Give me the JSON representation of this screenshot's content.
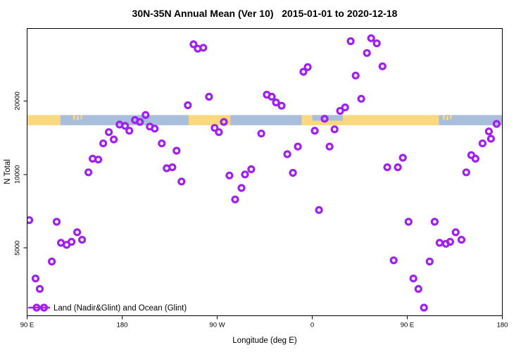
{
  "title": "30N-35N Annual Mean (Ver 10)   2015-01-01 to 2020-12-18",
  "axes": {
    "x_label": "Longitude (deg E)",
    "y_label": "N Total"
  },
  "legend": {
    "label": "Land (Nadir&Glint) and Ocean (Glint)"
  },
  "colors": {
    "point": "#A020F0",
    "land": "#FAD87D",
    "ocean": "#A8BEDA",
    "axis": "#000000",
    "background": "#FFFFFF"
  },
  "chart_data": {
    "type": "scatter",
    "title": "30N-35N Annual Mean (Ver 10)   2015-01-01 to 2020-12-18",
    "xlabel": "Longitude (deg E)",
    "ylabel": "N Total",
    "x_scale": "linear-wrapped-longitude",
    "y_scale": "log",
    "x_domain": [
      90,
      540
    ],
    "y_domain": [
      2640,
      39560
    ],
    "grid": false,
    "legend_position": "bottom-left-inside",
    "x_ticks": [
      {
        "lon": 90,
        "label": "90 E"
      },
      {
        "lon": 180,
        "label": "180"
      },
      {
        "lon": 270,
        "label": "90 W"
      },
      {
        "lon": 360,
        "label": "0"
      },
      {
        "lon": 450,
        "label": "90 E"
      },
      {
        "lon": 540,
        "label": "180"
      }
    ],
    "y_ticks": [
      {
        "value": 5000,
        "label": "5000"
      },
      {
        "value": 10000,
        "label": "10000"
      },
      {
        "value": 20000,
        "label": "20000"
      }
    ],
    "map_strip": {
      "band": {
        "v_top": 17500,
        "v_bottom": 15900
      },
      "segments": [
        {
          "from": 90,
          "to": 121.5,
          "surface": "land"
        },
        {
          "from": 121.5,
          "to": 243,
          "surface": "ocean"
        },
        {
          "from": 243,
          "to": 282.5,
          "surface": "land"
        },
        {
          "from": 282.5,
          "to": 350,
          "surface": "ocean"
        },
        {
          "from": 350,
          "to": 480,
          "surface": "land"
        },
        {
          "from": 480,
          "to": 540,
          "surface": "ocean"
        }
      ],
      "details": [
        {
          "from": 360,
          "to": 389,
          "surface": "ocean",
          "top": 0,
          "bottom": 0.55
        },
        {
          "from": 133.5,
          "to": 135.5,
          "surface": "land",
          "top": 0,
          "bottom": 0.45
        },
        {
          "from": 137,
          "to": 139,
          "surface": "land",
          "top": 0.1,
          "bottom": 0.5
        },
        {
          "from": 140.5,
          "to": 142,
          "surface": "land",
          "top": 0,
          "bottom": 0.4
        },
        {
          "from": 483.5,
          "to": 485.5,
          "surface": "land",
          "top": 0,
          "bottom": 0.45
        },
        {
          "from": 487,
          "to": 489,
          "surface": "land",
          "top": 0.1,
          "bottom": 0.5
        },
        {
          "from": 490.5,
          "to": 492,
          "surface": "land",
          "top": 0,
          "bottom": 0.4
        }
      ]
    },
    "points": [
      [
        247.6,
        34100
      ],
      [
        251.6,
        32700
      ],
      [
        256.9,
        33000
      ],
      [
        262.3,
        20800
      ],
      [
        242.2,
        19200
      ],
      [
        202.2,
        17500
      ],
      [
        317.0,
        21200
      ],
      [
        321.7,
        20800
      ],
      [
        325.7,
        19700
      ],
      [
        331.0,
        19100
      ],
      [
        396.4,
        35100
      ],
      [
        415.8,
        36100
      ],
      [
        421.1,
        34400
      ],
      [
        411.8,
        31400
      ],
      [
        426.5,
        27700
      ],
      [
        401.1,
        25400
      ],
      [
        355.7,
        27500
      ],
      [
        351.7,
        26300
      ],
      [
        406.4,
        20400
      ],
      [
        386.4,
        18200
      ],
      [
        391.1,
        18800
      ],
      [
        192.2,
        16700
      ],
      [
        196.8,
        16400
      ],
      [
        177.5,
        16000
      ],
      [
        182.8,
        15800
      ],
      [
        186.8,
        15100
      ],
      [
        167.4,
        14900
      ],
      [
        162.1,
        13400
      ],
      [
        172.1,
        13900
      ],
      [
        206.2,
        15700
      ],
      [
        210.8,
        15400
      ],
      [
        217.5,
        13400
      ],
      [
        231.5,
        12500
      ],
      [
        152.1,
        11600
      ],
      [
        157.4,
        11500
      ],
      [
        148.1,
        10200
      ],
      [
        222.2,
        10600
      ],
      [
        227.5,
        10700
      ],
      [
        236.2,
        9350
      ],
      [
        267.6,
        15500
      ],
      [
        271.6,
        14900
      ],
      [
        276.3,
        16400
      ],
      [
        281.6,
        9900
      ],
      [
        296.3,
        10000
      ],
      [
        302.3,
        10500
      ],
      [
        311.7,
        14700
      ],
      [
        293.0,
        8800
      ],
      [
        371.7,
        16900
      ],
      [
        362.4,
        15100
      ],
      [
        381.1,
        15300
      ],
      [
        376.4,
        13000
      ],
      [
        346.4,
        13000
      ],
      [
        336.4,
        12100
      ],
      [
        341.7,
        10150
      ],
      [
        431.1,
        10700
      ],
      [
        441.1,
        10700
      ],
      [
        445.8,
        11700
      ],
      [
        510.6,
        12000
      ],
      [
        514.6,
        11600
      ],
      [
        505.9,
        10200
      ],
      [
        521.3,
        13400
      ],
      [
        527.3,
        15000
      ],
      [
        529.3,
        14000
      ],
      [
        534.6,
        16100
      ],
      [
        287.0,
        7900
      ],
      [
        92.0,
        6500
      ],
      [
        118.0,
        6400
      ],
      [
        137.4,
        5800
      ],
      [
        122.1,
        5250
      ],
      [
        127.4,
        5150
      ],
      [
        132.1,
        5300
      ],
      [
        142.1,
        5400
      ],
      [
        113.4,
        4400
      ],
      [
        98.0,
        3750
      ],
      [
        102.0,
        3400
      ],
      [
        366.4,
        7150
      ],
      [
        451.2,
        6400
      ],
      [
        475.9,
        6400
      ],
      [
        495.9,
        5800
      ],
      [
        480.6,
        5250
      ],
      [
        486.6,
        5200
      ],
      [
        490.6,
        5300
      ],
      [
        501.3,
        5400
      ],
      [
        437.1,
        4450
      ],
      [
        471.2,
        4400
      ],
      [
        455.8,
        3750
      ],
      [
        460.5,
        3400
      ],
      [
        465.8,
        2850
      ],
      [
        106.0,
        2850
      ]
    ]
  }
}
